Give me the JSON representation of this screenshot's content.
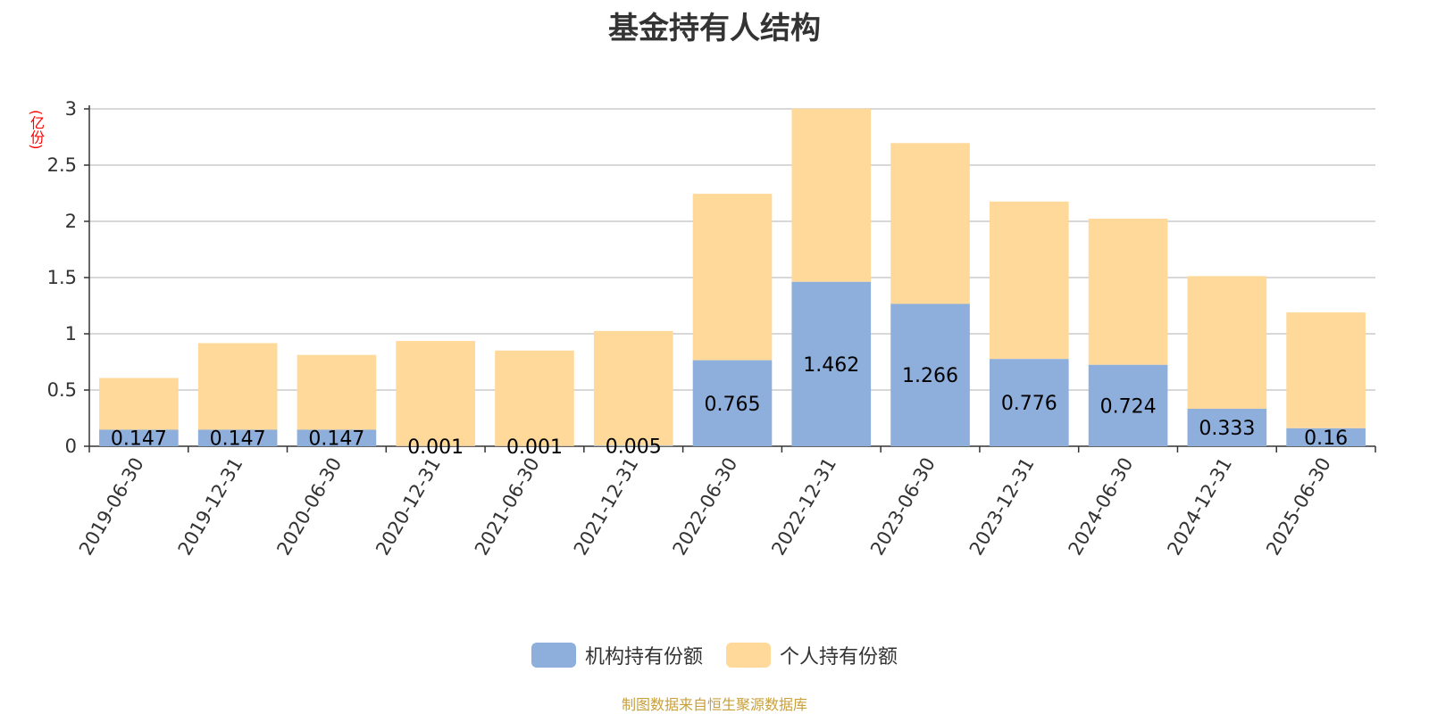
{
  "title": "基金持有人结构",
  "unit_label": "(亿份)",
  "source": "制图数据来自恒生聚源数据库",
  "colors": {
    "institution": "#8eaedc",
    "individual": "#ffd99a",
    "axis": "#333333",
    "grid": "#cccccc",
    "label": "#000000"
  },
  "chart_data": {
    "type": "bar",
    "stacked": true,
    "title": "基金持有人结构",
    "ylabel": "(亿份)",
    "ylim": [
      0,
      3
    ],
    "yticks": [
      0,
      0.5,
      1,
      1.5,
      2,
      2.5,
      3
    ],
    "grid": true,
    "legend_position": "bottom-center",
    "categories": [
      "2019-06-30",
      "2019-12-31",
      "2020-06-30",
      "2020-12-31",
      "2021-06-30",
      "2021-12-31",
      "2022-06-30",
      "2022-12-31",
      "2023-06-30",
      "2023-12-31",
      "2024-06-30",
      "2024-12-31",
      "2025-06-30"
    ],
    "series": [
      {
        "name": "机构持有份额",
        "values": [
          0.147,
          0.147,
          0.147,
          0.001,
          0.001,
          0.005,
          0.765,
          1.462,
          1.266,
          0.776,
          0.724,
          0.333,
          0.16
        ],
        "labels": [
          "0.147",
          "0.147",
          "0.147",
          "0.001",
          "0.001",
          "0.005",
          "0.765",
          "1.462",
          "1.266",
          "0.776",
          "0.724",
          "0.333",
          "0.16"
        ]
      },
      {
        "name": "个人持有份额",
        "values": [
          0.46,
          0.77,
          0.665,
          0.935,
          0.85,
          1.02,
          1.48,
          1.54,
          1.43,
          1.4,
          1.3,
          1.18,
          1.03
        ]
      }
    ]
  }
}
